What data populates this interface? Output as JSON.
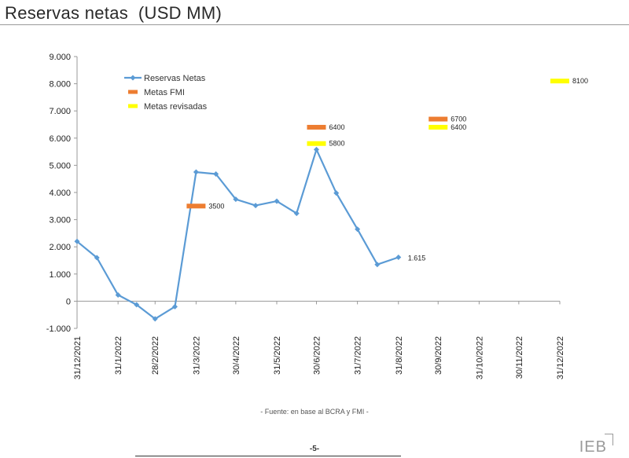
{
  "slide": {
    "title": "Reservas netas  (USD MM)",
    "source": "- Fuente: en base al BCRA y FMI -",
    "page_number": "-5-",
    "logo": "IEB"
  },
  "colors": {
    "reservas": "#5b9bd5",
    "metas_fmi": "#ed7d31",
    "metas_revisadas": "#ffff00",
    "grid": "#bfbfbf"
  },
  "chart_data": {
    "type": "line",
    "title": "",
    "xlabel": "",
    "ylabel": "",
    "ylim": [
      -1000,
      9000
    ],
    "y_ticks": [
      -1000,
      0,
      1000,
      2000,
      3000,
      4000,
      5000,
      6000,
      7000,
      8000,
      9000
    ],
    "y_tick_labels": [
      "-1.000",
      "0",
      "1.000",
      "2.000",
      "3.000",
      "4.000",
      "5.000",
      "6.000",
      "7.000",
      "8.000",
      "9.000"
    ],
    "x_ticks": [
      "31/12/2021",
      "31/1/2022",
      "28/2/2022",
      "31/3/2022",
      "30/4/2022",
      "31/5/2022",
      "30/6/2022",
      "31/7/2022",
      "31/8/2022",
      "30/9/2022",
      "31/10/2022",
      "30/11/2022",
      "31/12/2022"
    ],
    "x_range": [
      "2021-12-31",
      "2022-12-31"
    ],
    "grid": false,
    "legend_position": "top-left",
    "series": [
      {
        "name": "Reservas Netas",
        "kind": "line-marker",
        "color": "#5b9bd5",
        "points": [
          {
            "x": "2021-12-31",
            "y": 2200
          },
          {
            "x": "2022-01-15",
            "y": 1600
          },
          {
            "x": "2022-01-31",
            "y": 230
          },
          {
            "x": "2022-02-14",
            "y": -130
          },
          {
            "x": "2022-02-28",
            "y": -650
          },
          {
            "x": "2022-03-15",
            "y": -200
          },
          {
            "x": "2022-03-31",
            "y": 4750
          },
          {
            "x": "2022-04-15",
            "y": 4680
          },
          {
            "x": "2022-04-30",
            "y": 3750
          },
          {
            "x": "2022-05-15",
            "y": 3520
          },
          {
            "x": "2022-05-31",
            "y": 3680
          },
          {
            "x": "2022-06-15",
            "y": 3230
          },
          {
            "x": "2022-06-30",
            "y": 5580
          },
          {
            "x": "2022-07-15",
            "y": 3980
          },
          {
            "x": "2022-07-31",
            "y": 2650
          },
          {
            "x": "2022-08-15",
            "y": 1350
          },
          {
            "x": "2022-08-31",
            "y": 1615
          }
        ],
        "end_label": "1.615"
      },
      {
        "name": "Metas FMI",
        "kind": "dash-marker",
        "color": "#ed7d31",
        "points": [
          {
            "x": "2022-03-31",
            "y": 3500,
            "label": "3500"
          },
          {
            "x": "2022-06-30",
            "y": 6400,
            "label": "6400"
          },
          {
            "x": "2022-09-30",
            "y": 6700,
            "label": "6700"
          }
        ]
      },
      {
        "name": "Metas revisadas",
        "kind": "dash-marker",
        "color": "#ffff00",
        "points": [
          {
            "x": "2022-06-30",
            "y": 5800,
            "label": "5800"
          },
          {
            "x": "2022-09-30",
            "y": 6400,
            "label": "6400"
          },
          {
            "x": "2022-12-31",
            "y": 8100,
            "label": "8100"
          }
        ]
      }
    ]
  }
}
